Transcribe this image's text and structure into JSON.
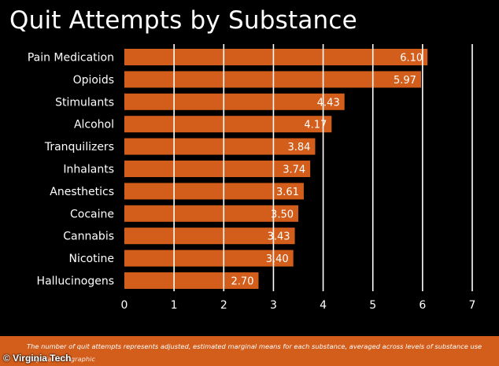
{
  "chart_data": {
    "type": "bar",
    "orientation": "horizontal",
    "title": "Quit Attempts by Substance",
    "categories": [
      "Pain Medication",
      "Opioids",
      "Stimulants",
      "Alcohol",
      "Tranquilizers",
      "Inhalants",
      "Anesthetics",
      "Cocaine",
      "Cannabis",
      "Nicotine",
      "Hallucinogens"
    ],
    "values": [
      6.1,
      5.97,
      4.43,
      4.17,
      3.84,
      3.74,
      3.61,
      3.5,
      3.43,
      3.4,
      2.7
    ],
    "value_labels": [
      "6.10",
      "5.97",
      "4.43",
      "4.17",
      "3.84",
      "3.74",
      "3.61",
      "3.50",
      "3.43",
      "3.40",
      "2.70"
    ],
    "xlim": [
      0,
      7
    ],
    "xticks": [
      "0",
      "1",
      "2",
      "3",
      "4",
      "5",
      "6",
      "7"
    ],
    "xlabel": "",
    "ylabel": "",
    "grid": "vertical",
    "colors": {
      "background": "#000000",
      "bar": "#d35d1b",
      "grid": "#ffffff",
      "text": "#ffffff"
    }
  },
  "footer": {
    "note": "The number of quit attempts represents adjusted, estimated marginal means for each substance, averaged across levels of substance use",
    "credit": "Virginia Tech graphic",
    "watermark": "© Virginia Tech"
  }
}
